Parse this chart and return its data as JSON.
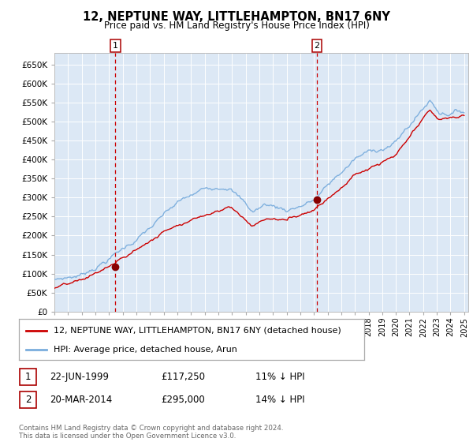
{
  "title": "12, NEPTUNE WAY, LITTLEHAMPTON, BN17 6NY",
  "subtitle": "Price paid vs. HM Land Registry's House Price Index (HPI)",
  "legend_line1": "12, NEPTUNE WAY, LITTLEHAMPTON, BN17 6NY (detached house)",
  "legend_line2": "HPI: Average price, detached house, Arun",
  "transaction1": {
    "label": "1",
    "date": "22-JUN-1999",
    "price": 117250,
    "pct": "11% ↓ HPI"
  },
  "transaction2": {
    "label": "2",
    "date": "20-MAR-2014",
    "price": 295000,
    "pct": "14% ↓ HPI"
  },
  "footer": "Contains HM Land Registry data © Crown copyright and database right 2024.\nThis data is licensed under the Open Government Licence v3.0.",
  "plot_bg_color": "#dce8f5",
  "hpi_color": "#7aaddd",
  "price_color": "#cc0000",
  "vline_color": "#cc0000",
  "ylim": [
    0,
    680000
  ],
  "ytick_step": 50000,
  "xstart_year": 1995,
  "xend_year": 2025,
  "t1_year": 1999.47,
  "t2_year": 2014.22,
  "t1_price": 117250,
  "t2_price": 295000
}
